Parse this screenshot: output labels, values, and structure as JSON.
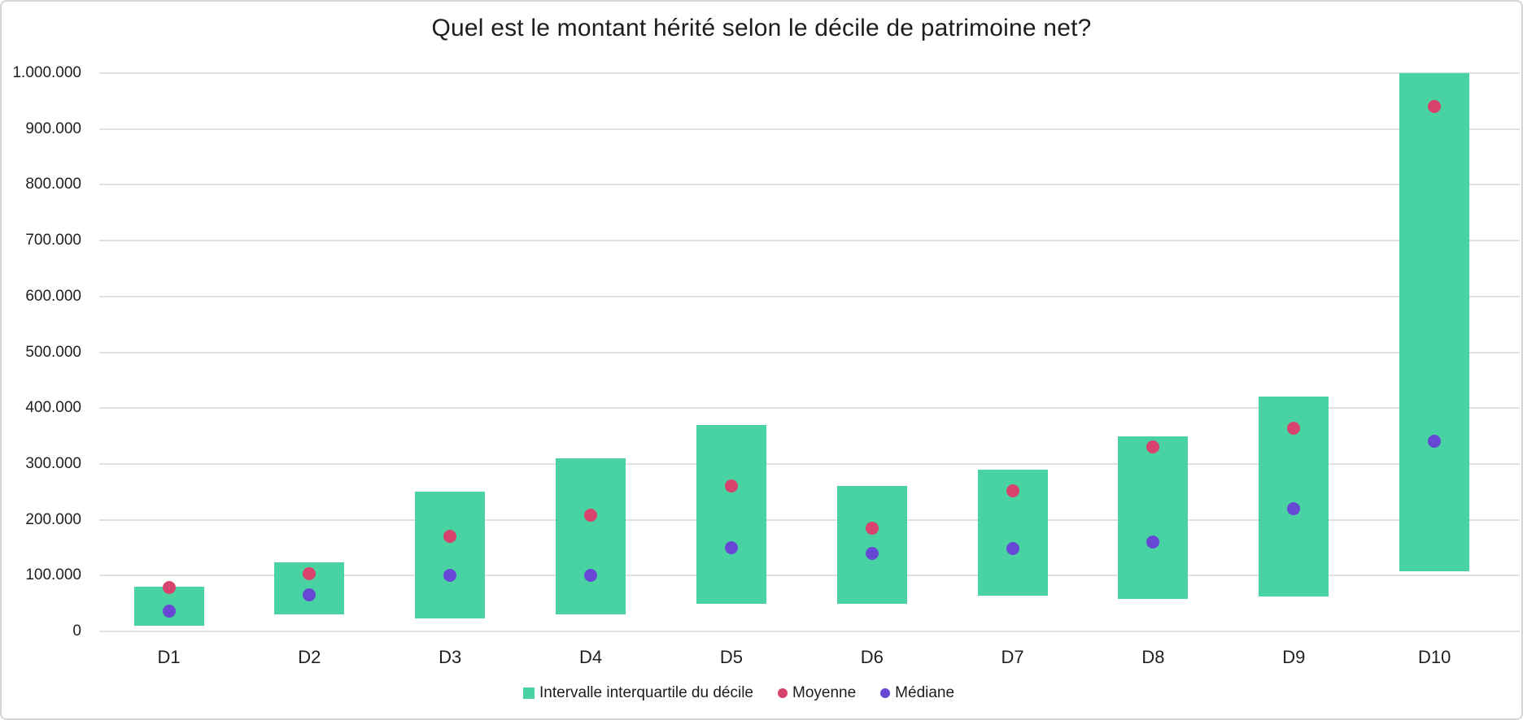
{
  "page": {
    "background": "#ffffff",
    "border_color": "#d5d5d5"
  },
  "colors": {
    "gridline": "#e0e0e0",
    "text": "#1f1f1f",
    "iqr_bar": "#49d3a3",
    "mean_point": "#d8436e",
    "median_point": "#6748d5"
  },
  "chart_data": {
    "type": "bar",
    "subtype": "floating-range-bars-with-points",
    "title": "Quel est le montant hérité selon le décile de patrimoine net?",
    "categories": [
      "D1",
      "D2",
      "D3",
      "D4",
      "D5",
      "D6",
      "D7",
      "D8",
      "D9",
      "D10"
    ],
    "series": [
      {
        "name": "Intervalle interquartile du décile",
        "type": "range-bar",
        "marker": "square",
        "color": "#49d3a3",
        "low": [
          10000,
          30000,
          24000,
          30000,
          50000,
          50000,
          64000,
          58000,
          63000,
          108000
        ],
        "high": [
          80000,
          124000,
          250000,
          310000,
          370000,
          260000,
          290000,
          350000,
          420000,
          1000000
        ]
      },
      {
        "name": "Moyenne",
        "type": "point",
        "marker": "circle",
        "color": "#d8436e",
        "values": [
          79000,
          103000,
          170000,
          208000,
          260000,
          185000,
          252000,
          330000,
          364000,
          940000
        ]
      },
      {
        "name": "Médiane",
        "type": "point",
        "marker": "circle",
        "color": "#6748d5",
        "values": [
          37000,
          65000,
          100000,
          100000,
          150000,
          140000,
          148000,
          160000,
          220000,
          340000
        ]
      }
    ],
    "ylim": [
      0,
      1000000
    ],
    "ytick_step": 100000,
    "ytick_labels": [
      "0",
      "100.000",
      "200.000",
      "300.000",
      "400.000",
      "500.000",
      "600.000",
      "700.000",
      "800.000",
      "900.000",
      "1.000.000"
    ],
    "grid": "horizontal",
    "legend_position": "bottom"
  }
}
